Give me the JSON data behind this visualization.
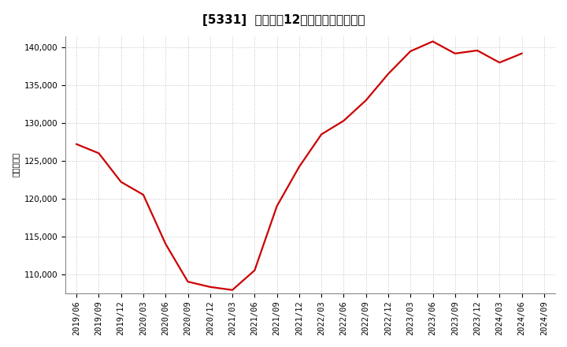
{
  "title": "[5331]  売上高の12か月移動合計の推移",
  "ylabel": "（百万円）",
  "line_color": "#cc0000",
  "background_color": "#ffffff",
  "grid_color": "#bbbbbb",
  "dates": [
    "2019/06",
    "2019/09",
    "2019/12",
    "2020/03",
    "2020/06",
    "2020/09",
    "2020/12",
    "2021/03",
    "2021/06",
    "2021/09",
    "2021/12",
    "2022/03",
    "2022/06",
    "2022/09",
    "2022/12",
    "2023/03",
    "2023/06",
    "2023/09",
    "2023/12",
    "2024/03",
    "2024/06",
    "2024/09"
  ],
  "values": [
    127200,
    126000,
    122200,
    120500,
    114000,
    109000,
    108300,
    107900,
    110500,
    119000,
    124200,
    128500,
    130300,
    133000,
    136500,
    139500,
    140800,
    139200,
    139600,
    138000,
    139200,
    null
  ],
  "ylim": [
    107500,
    141500
  ],
  "yticks": [
    110000,
    115000,
    120000,
    125000,
    130000,
    135000,
    140000
  ],
  "title_fontsize": 11,
  "tick_fontsize": 7.5,
  "ylabel_fontsize": 7.5,
  "line_width": 1.6
}
